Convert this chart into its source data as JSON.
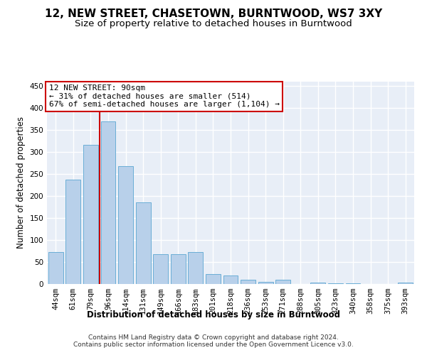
{
  "title": "12, NEW STREET, CHASETOWN, BURNTWOOD, WS7 3XY",
  "subtitle": "Size of property relative to detached houses in Burntwood",
  "xlabel": "Distribution of detached houses by size in Burntwood",
  "ylabel": "Number of detached properties",
  "categories": [
    "44sqm",
    "61sqm",
    "79sqm",
    "96sqm",
    "114sqm",
    "131sqm",
    "149sqm",
    "166sqm",
    "183sqm",
    "201sqm",
    "218sqm",
    "236sqm",
    "253sqm",
    "271sqm",
    "288sqm",
    "305sqm",
    "323sqm",
    "340sqm",
    "358sqm",
    "375sqm",
    "393sqm"
  ],
  "values": [
    72,
    237,
    317,
    370,
    268,
    185,
    68,
    68,
    72,
    22,
    20,
    10,
    5,
    10,
    0,
    4,
    1,
    1,
    0,
    0,
    4
  ],
  "bar_color": "#b8d0ea",
  "bar_edge_color": "#6aaed6",
  "annotation_text": "12 NEW STREET: 90sqm\n← 31% of detached houses are smaller (514)\n67% of semi-detached houses are larger (1,104) →",
  "annotation_box_color": "white",
  "annotation_box_edge_color": "#cc0000",
  "vline_color": "#cc0000",
  "vline_x": 2.5,
  "ylim": [
    0,
    460
  ],
  "yticks": [
    0,
    50,
    100,
    150,
    200,
    250,
    300,
    350,
    400,
    450
  ],
  "background_color": "#e8eef7",
  "grid_color": "white",
  "footer": "Contains HM Land Registry data © Crown copyright and database right 2024.\nContains public sector information licensed under the Open Government Licence v3.0.",
  "title_fontsize": 11,
  "subtitle_fontsize": 9.5,
  "xlabel_fontsize": 8.5,
  "ylabel_fontsize": 8.5,
  "tick_fontsize": 7.5,
  "annotation_fontsize": 8,
  "footer_fontsize": 6.5
}
